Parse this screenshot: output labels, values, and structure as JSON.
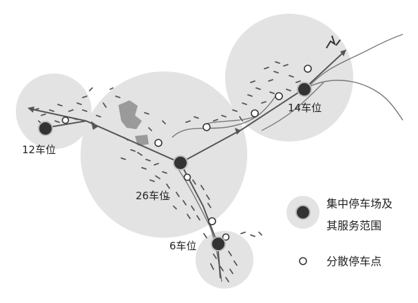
{
  "parking_sites": [
    {
      "id": "site-12",
      "label": "12车位"
    },
    {
      "id": "site-26",
      "label": "26车位"
    },
    {
      "id": "site-14",
      "label": "14车位"
    },
    {
      "id": "site-6",
      "label": "6车位"
    }
  ],
  "legend": {
    "centralized": {
      "line1": "集中停车场及",
      "line2": "其服务范围"
    },
    "scattered": "分散停车点"
  },
  "colors": {
    "service_area": "#e3e3e3",
    "hub": "#333333",
    "road": "#777777",
    "route": "#555555",
    "building": "#9a9a9a"
  }
}
